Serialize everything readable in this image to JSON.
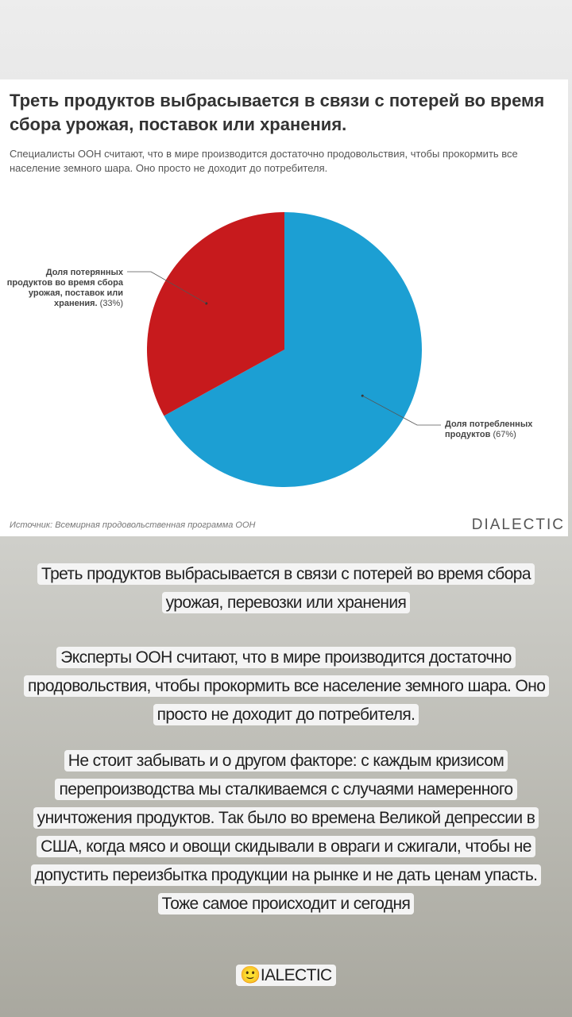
{
  "chart_data": {
    "type": "pie",
    "title": "Треть продуктов выбрасывается в связи с потерей во время сбора урожая, поставок или хранения.",
    "subtitle": "Специалисты ООН считают, что в мире производится достаточно продовольствия, чтобы прокормить все население земного шара. Оно просто не доходит до потребителя.",
    "categories": [
      "Доля потребленных продуктов",
      "Доля потерянных продуктов во время сбора урожая, поставок или хранения."
    ],
    "values": [
      67,
      33
    ],
    "value_labels": [
      "(67%)",
      "(33%)"
    ],
    "colors": [
      "#1c9fd3",
      "#c71a1d"
    ],
    "source": "Источник: Всемирная продовольственная программа ООН",
    "brand": "DIALECTIC"
  },
  "story": {
    "paragraphs": [
      "Треть продуктов выбрасывается в связи с потерей во время сбора урожая, перевозки или хранения",
      "Эксперты ООН считают, что в мире производится достаточно продовольствия, чтобы прокормить все население земного шара. Оно просто не доходит до потребителя.",
      "Не стоит забывать и о другом факторе: с каждым кризисом перепроизводства мы сталкиваемся с случаями намеренного уничтожения продуктов. Так было во времена Великой депрессии в США, когда мясо и овощи скидывали в овраги и сжигали, чтобы не допустить переизбытка продукции на рынке и не дать ценам упасть. Тоже самое происходит и сегодня"
    ],
    "footer": "🙂IALECTIC"
  }
}
